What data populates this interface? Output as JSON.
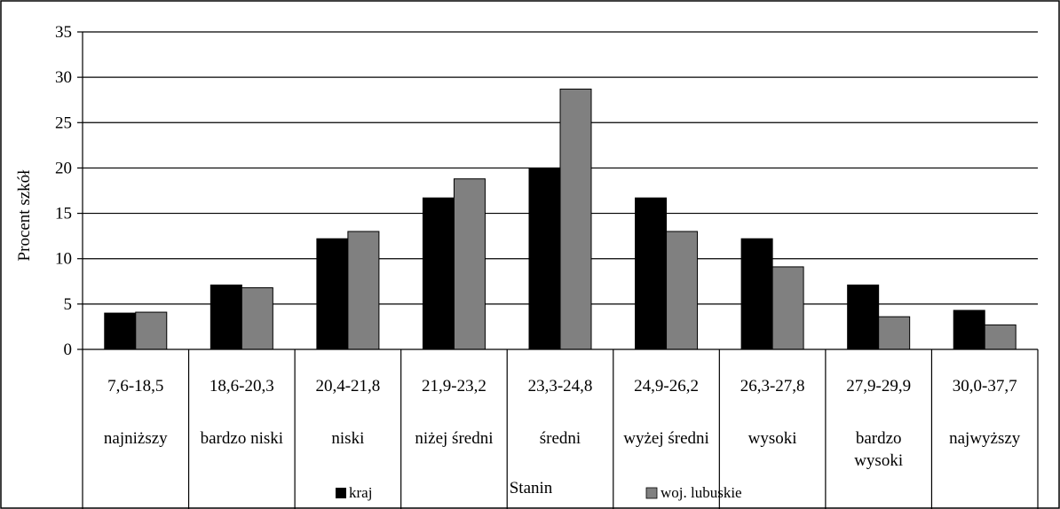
{
  "chart_data": {
    "type": "bar",
    "title": "",
    "xlabel": "Stanin",
    "ylabel": "Procent szkół",
    "ylim": [
      0,
      35
    ],
    "yticks": [
      0,
      5,
      10,
      15,
      20,
      25,
      30,
      35
    ],
    "grid": true,
    "legend_position": "bottom",
    "categories": [
      {
        "range": "7,6-18,5",
        "label": "najniższy"
      },
      {
        "range": "18,6-20,3",
        "label": "bardzo niski"
      },
      {
        "range": "20,4-21,8",
        "label": "niski"
      },
      {
        "range": "21,9-23,2",
        "label": "niżej średni"
      },
      {
        "range": "23,3-24,8",
        "label": "średni"
      },
      {
        "range": "24,9-26,2",
        "label": "wyżej średni"
      },
      {
        "range": "26,3-27,8",
        "label": "wysoki"
      },
      {
        "range": "27,9-29,9",
        "label": "bardzo wysoki"
      },
      {
        "range": "30,0-37,7",
        "label": "najwyższy"
      }
    ],
    "series": [
      {
        "name": "kraj",
        "color": "#000000",
        "values": [
          4.0,
          7.1,
          12.2,
          16.7,
          20.0,
          16.7,
          12.2,
          7.1,
          4.3
        ]
      },
      {
        "name": "woj. lubuskie",
        "color": "#808080",
        "values": [
          4.1,
          6.8,
          13.0,
          18.8,
          28.7,
          13.0,
          9.1,
          3.6,
          2.7
        ]
      }
    ]
  }
}
